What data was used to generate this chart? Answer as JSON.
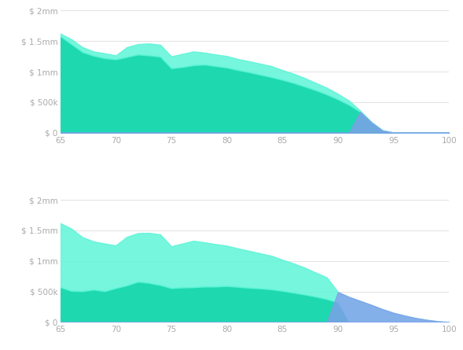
{
  "background_color": "#ffffff",
  "color_teal_dark": "#1ed8b0",
  "color_teal_light": "#5ef5d8",
  "color_purple": "#8899ee",
  "ylabel_format": [
    "$ 0",
    "$ 500k",
    "$ 1mm",
    "$ 1.5mm",
    "$ 2mm"
  ],
  "yticks": [
    0,
    500000,
    1000000,
    1500000,
    2000000
  ],
  "xlim": [
    65,
    100
  ],
  "ylim": [
    0,
    2000000
  ],
  "xticks": [
    65,
    70,
    75,
    80,
    85,
    90,
    95,
    100
  ],
  "chart1": {
    "x": [
      65,
      66,
      67,
      68,
      69,
      70,
      71,
      72,
      73,
      74,
      75,
      76,
      77,
      78,
      79,
      80,
      81,
      82,
      83,
      84,
      85,
      86,
      87,
      88,
      89,
      90,
      91,
      92,
      93,
      94,
      95,
      96,
      97,
      98,
      99,
      100
    ],
    "main_top": [
      1580000,
      1450000,
      1320000,
      1260000,
      1220000,
      1200000,
      1240000,
      1280000,
      1265000,
      1245000,
      1055000,
      1075000,
      1105000,
      1115000,
      1090000,
      1065000,
      1025000,
      990000,
      950000,
      910000,
      865000,
      815000,
      755000,
      695000,
      625000,
      545000,
      455000,
      340000,
      170000,
      35000,
      0,
      0,
      0,
      0,
      0,
      0
    ],
    "cap_top": [
      1625000,
      1530000,
      1400000,
      1330000,
      1300000,
      1265000,
      1400000,
      1450000,
      1460000,
      1440000,
      1250000,
      1290000,
      1330000,
      1310000,
      1280000,
      1255000,
      1205000,
      1170000,
      1130000,
      1090000,
      1025000,
      965000,
      895000,
      815000,
      735000,
      635000,
      525000,
      360000,
      175000,
      40000,
      0,
      0,
      0,
      0,
      0,
      0
    ],
    "purple": [
      0,
      0,
      0,
      0,
      0,
      0,
      0,
      0,
      0,
      0,
      0,
      0,
      0,
      0,
      0,
      0,
      0,
      0,
      0,
      0,
      0,
      0,
      0,
      0,
      0,
      0,
      0,
      340000,
      170000,
      35000,
      0,
      0,
      0,
      0,
      0,
      0
    ]
  },
  "chart2": {
    "x": [
      65,
      66,
      67,
      68,
      69,
      70,
      71,
      72,
      73,
      74,
      75,
      76,
      77,
      78,
      79,
      80,
      81,
      82,
      83,
      84,
      85,
      86,
      87,
      88,
      89,
      90,
      91,
      92,
      93,
      94,
      95,
      96,
      97,
      98,
      99,
      100
    ],
    "bot_top": [
      570000,
      510000,
      505000,
      530000,
      505000,
      555000,
      600000,
      660000,
      640000,
      605000,
      555000,
      565000,
      570000,
      580000,
      580000,
      590000,
      575000,
      560000,
      550000,
      535000,
      510000,
      480000,
      450000,
      415000,
      375000,
      320000,
      0,
      0,
      0,
      0,
      0,
      0,
      0,
      0,
      0,
      0
    ],
    "main_top": [
      1620000,
      1530000,
      1390000,
      1320000,
      1285000,
      1255000,
      1395000,
      1455000,
      1460000,
      1435000,
      1240000,
      1285000,
      1330000,
      1305000,
      1275000,
      1250000,
      1205000,
      1165000,
      1125000,
      1085000,
      1020000,
      960000,
      890000,
      810000,
      730000,
      490000,
      410000,
      345000,
      280000,
      210000,
      150000,
      105000,
      65000,
      35000,
      12000,
      0
    ],
    "purple": [
      0,
      0,
      0,
      0,
      0,
      0,
      0,
      0,
      0,
      0,
      0,
      0,
      0,
      0,
      0,
      0,
      0,
      0,
      0,
      0,
      0,
      0,
      0,
      0,
      0,
      490000,
      410000,
      345000,
      280000,
      210000,
      150000,
      105000,
      65000,
      35000,
      12000,
      0
    ]
  },
  "grid_color": "#dddddd",
  "label_color": "#aaaaaa",
  "font_size": 7.5
}
